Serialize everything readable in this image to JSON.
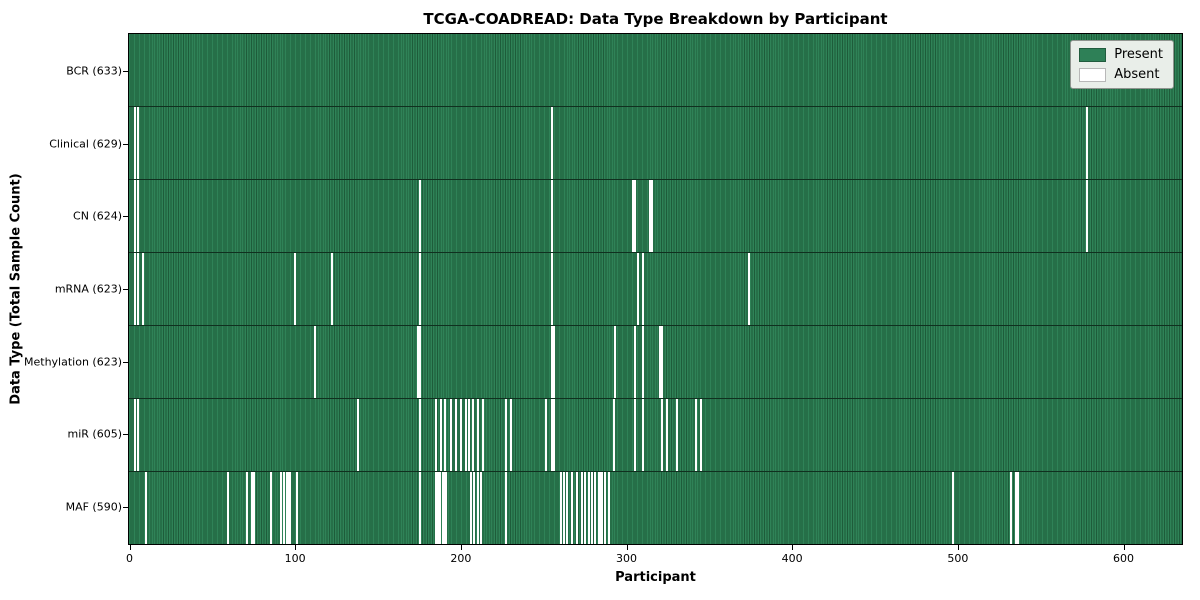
{
  "figure": {
    "title": "TCGA-COADREAD: Data Type Breakdown by Participant",
    "xlabel": "Participant",
    "ylabel": "Data Type (Total Sample Count)"
  },
  "legend": {
    "items": [
      {
        "name": "present",
        "label": "Present",
        "color": "#2e8057"
      },
      {
        "name": "absent",
        "label": "Absent",
        "color": "#ffffff"
      }
    ]
  },
  "chart_data": {
    "type": "heatmap",
    "title": "TCGA-COADREAD: Data Type Breakdown by Participant",
    "xlabel": "Participant",
    "ylabel": "Data Type (Total Sample Count)",
    "legend_position": "upper right",
    "present_color": "#2e8057",
    "present_edge_color": "#1e5c3a",
    "absent_color": "#ffffff",
    "n_participants": 633,
    "xlim": [
      0,
      635
    ],
    "x_ticks": [
      0,
      100,
      200,
      300,
      400,
      500,
      600
    ],
    "rows": [
      {
        "label": "BCR (633)",
        "data_type": "BCR",
        "count": 633,
        "absent": []
      },
      {
        "label": "Clinical (629)",
        "data_type": "Clinical",
        "count": 629,
        "absent": [
          3,
          5,
          255,
          578
        ]
      },
      {
        "label": "CN (624)",
        "data_type": "CN",
        "count": 624,
        "absent": [
          3,
          5,
          175,
          255,
          304,
          305,
          314,
          315,
          578
        ]
      },
      {
        "label": "mRNA (623)",
        "data_type": "mRNA",
        "count": 623,
        "absent": [
          3,
          5,
          8,
          100,
          122,
          175,
          255,
          307,
          310,
          374
        ]
      },
      {
        "label": "Methylation (623)",
        "data_type": "Methylation",
        "count": 623,
        "absent": [
          112,
          174,
          175,
          255,
          256,
          293,
          305,
          310,
          320,
          321
        ]
      },
      {
        "label": "miR (605)",
        "data_type": "miR",
        "count": 605,
        "absent": [
          3,
          5,
          138,
          175,
          185,
          188,
          190,
          194,
          197,
          200,
          203,
          205,
          207,
          210,
          213,
          227,
          230,
          251,
          255,
          256,
          292,
          305,
          310,
          321,
          324,
          330,
          342,
          345
        ]
      },
      {
        "label": "MAF (590)",
        "data_type": "MAF",
        "count": 590,
        "absent": [
          10,
          59,
          71,
          74,
          75,
          85,
          91,
          93,
          95,
          96,
          97,
          101,
          175,
          185,
          186,
          187,
          189,
          190,
          191,
          206,
          208,
          210,
          212,
          227,
          260,
          262,
          264,
          267,
          270,
          273,
          275,
          277,
          279,
          281,
          283,
          284,
          285,
          287,
          289,
          497,
          532,
          535,
          536
        ]
      }
    ]
  }
}
